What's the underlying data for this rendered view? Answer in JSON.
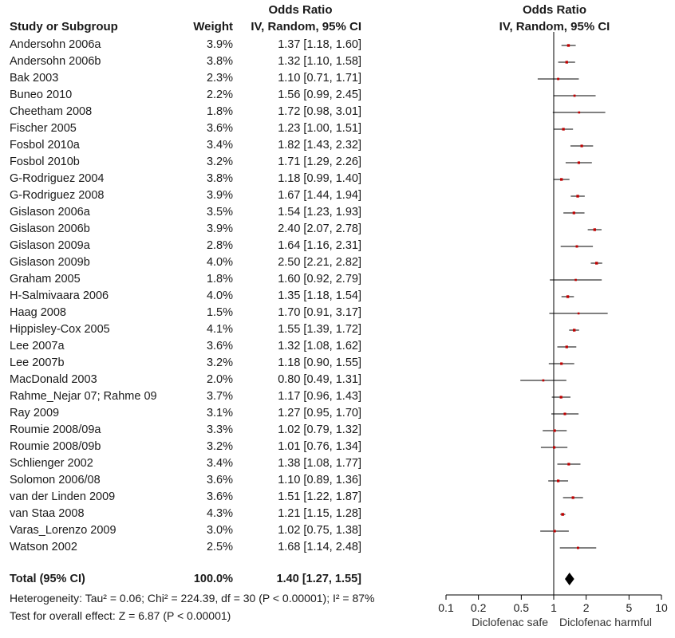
{
  "columns": {
    "study": "Study or Subgroup",
    "weight": "Weight",
    "or_title": "Odds Ratio",
    "or_method": "IV, Random, 95% CI",
    "plot_title": "Odds Ratio",
    "plot_method": "IV, Random, 95% CI"
  },
  "total": {
    "label": "Total (95% CI)",
    "weight": "100.0%",
    "ci": "1.40 [1.27, 1.55]"
  },
  "footer": {
    "heterogeneity": "Heterogeneity: Tau² = 0.06; Chi² = 224.39, df = 30 (P < 0.00001); I² = 87%",
    "overall": "Test for overall effect: Z = 6.87 (P < 0.00001)"
  },
  "colors": {
    "point": "#c00000",
    "line": "#000000"
  },
  "chart_data": {
    "type": "forest",
    "xscale": "log",
    "xlim": [
      0.1,
      10
    ],
    "ticks": [
      0.1,
      0.2,
      0.5,
      1,
      2,
      5,
      10
    ],
    "tick_labels": [
      "0.1",
      "0.2",
      "0.5",
      "1",
      "2",
      "5",
      "10"
    ],
    "reference_line": 1,
    "xlabel_left": "Diclofenac safe",
    "xlabel_right": "Diclofenac harmful",
    "studies": [
      {
        "study": "Andersohn 2006a",
        "weight": "3.9%",
        "ci": "1.37 [1.18, 1.60]",
        "or": 1.37,
        "lo": 1.18,
        "hi": 1.6
      },
      {
        "study": "Andersohn 2006b",
        "weight": "3.8%",
        "ci": "1.32 [1.10, 1.58]",
        "or": 1.32,
        "lo": 1.1,
        "hi": 1.58
      },
      {
        "study": "Bak 2003",
        "weight": "2.3%",
        "ci": "1.10 [0.71, 1.71]",
        "or": 1.1,
        "lo": 0.71,
        "hi": 1.71
      },
      {
        "study": "Buneo 2010",
        "weight": "2.2%",
        "ci": "1.56 [0.99, 2.45]",
        "or": 1.56,
        "lo": 0.99,
        "hi": 2.45
      },
      {
        "study": "Cheetham 2008",
        "weight": "1.8%",
        "ci": "1.72 [0.98, 3.01]",
        "or": 1.72,
        "lo": 0.98,
        "hi": 3.01
      },
      {
        "study": "Fischer 2005",
        "weight": "3.6%",
        "ci": "1.23 [1.00, 1.51]",
        "or": 1.23,
        "lo": 1.0,
        "hi": 1.51
      },
      {
        "study": "Fosbol 2010a",
        "weight": "3.4%",
        "ci": "1.82 [1.43, 2.32]",
        "or": 1.82,
        "lo": 1.43,
        "hi": 2.32
      },
      {
        "study": "Fosbol 2010b",
        "weight": "3.2%",
        "ci": "1.71 [1.29, 2.26]",
        "or": 1.71,
        "lo": 1.29,
        "hi": 2.26
      },
      {
        "study": "G-Rodriguez 2004",
        "weight": "3.8%",
        "ci": "1.18 [0.99, 1.40]",
        "or": 1.18,
        "lo": 0.99,
        "hi": 1.4
      },
      {
        "study": "G-Rodriguez 2008",
        "weight": "3.9%",
        "ci": "1.67 [1.44, 1.94]",
        "or": 1.67,
        "lo": 1.44,
        "hi": 1.94
      },
      {
        "study": "Gislason 2006a",
        "weight": "3.5%",
        "ci": "1.54 [1.23, 1.93]",
        "or": 1.54,
        "lo": 1.23,
        "hi": 1.93
      },
      {
        "study": "Gislason 2006b",
        "weight": "3.9%",
        "ci": "2.40 [2.07, 2.78]",
        "or": 2.4,
        "lo": 2.07,
        "hi": 2.78
      },
      {
        "study": "Gislason 2009a",
        "weight": "2.8%",
        "ci": "1.64 [1.16, 2.31]",
        "or": 1.64,
        "lo": 1.16,
        "hi": 2.31
      },
      {
        "study": "Gislason 2009b",
        "weight": "4.0%",
        "ci": "2.50 [2.21, 2.82]",
        "or": 2.5,
        "lo": 2.21,
        "hi": 2.82
      },
      {
        "study": "Graham 2005",
        "weight": "1.8%",
        "ci": "1.60 [0.92, 2.79]",
        "or": 1.6,
        "lo": 0.92,
        "hi": 2.79
      },
      {
        "study": "H-Salmivaara 2006",
        "weight": "4.0%",
        "ci": "1.35 [1.18, 1.54]",
        "or": 1.35,
        "lo": 1.18,
        "hi": 1.54
      },
      {
        "study": "Haag 2008",
        "weight": "1.5%",
        "ci": "1.70 [0.91, 3.17]",
        "or": 1.7,
        "lo": 0.91,
        "hi": 3.17
      },
      {
        "study": "Hippisley-Cox 2005",
        "weight": "4.1%",
        "ci": "1.55 [1.39, 1.72]",
        "or": 1.55,
        "lo": 1.39,
        "hi": 1.72
      },
      {
        "study": "Lee 2007a",
        "weight": "3.6%",
        "ci": "1.32 [1.08, 1.62]",
        "or": 1.32,
        "lo": 1.08,
        "hi": 1.62
      },
      {
        "study": "Lee 2007b",
        "weight": "3.2%",
        "ci": "1.18 [0.90, 1.55]",
        "or": 1.18,
        "lo": 0.9,
        "hi": 1.55
      },
      {
        "study": "MacDonald 2003",
        "weight": "2.0%",
        "ci": "0.80 [0.49, 1.31]",
        "or": 0.8,
        "lo": 0.49,
        "hi": 1.31
      },
      {
        "study": "Rahme_Nejar 07; Rahme 09",
        "weight": "3.7%",
        "ci": "1.17 [0.96, 1.43]",
        "or": 1.17,
        "lo": 0.96,
        "hi": 1.43
      },
      {
        "study": "Ray 2009",
        "weight": "3.1%",
        "ci": "1.27 [0.95, 1.70]",
        "or": 1.27,
        "lo": 0.95,
        "hi": 1.7
      },
      {
        "study": "Roumie 2008/09a",
        "weight": "3.3%",
        "ci": "1.02 [0.79, 1.32]",
        "or": 1.02,
        "lo": 0.79,
        "hi": 1.32
      },
      {
        "study": "Roumie 2008/09b",
        "weight": "3.2%",
        "ci": "1.01 [0.76, 1.34]",
        "or": 1.01,
        "lo": 0.76,
        "hi": 1.34
      },
      {
        "study": "Schlienger 2002",
        "weight": "3.4%",
        "ci": "1.38 [1.08, 1.77]",
        "or": 1.38,
        "lo": 1.08,
        "hi": 1.77
      },
      {
        "study": "Solomon 2006/08",
        "weight": "3.6%",
        "ci": "1.10 [0.89, 1.36]",
        "or": 1.1,
        "lo": 0.89,
        "hi": 1.36
      },
      {
        "study": "van der Linden 2009",
        "weight": "3.6%",
        "ci": "1.51 [1.22, 1.87]",
        "or": 1.51,
        "lo": 1.22,
        "hi": 1.87
      },
      {
        "study": "van Staa 2008",
        "weight": "4.3%",
        "ci": "1.21 [1.15, 1.28]",
        "or": 1.21,
        "lo": 1.15,
        "hi": 1.28
      },
      {
        "study": "Varas_Lorenzo 2009",
        "weight": "3.0%",
        "ci": "1.02 [0.75, 1.38]",
        "or": 1.02,
        "lo": 0.75,
        "hi": 1.38
      },
      {
        "study": "Watson 2002",
        "weight": "2.5%",
        "ci": "1.68 [1.14, 2.48]",
        "or": 1.68,
        "lo": 1.14,
        "hi": 2.48
      }
    ],
    "pooled": {
      "or": 1.4,
      "lo": 1.27,
      "hi": 1.55
    }
  }
}
